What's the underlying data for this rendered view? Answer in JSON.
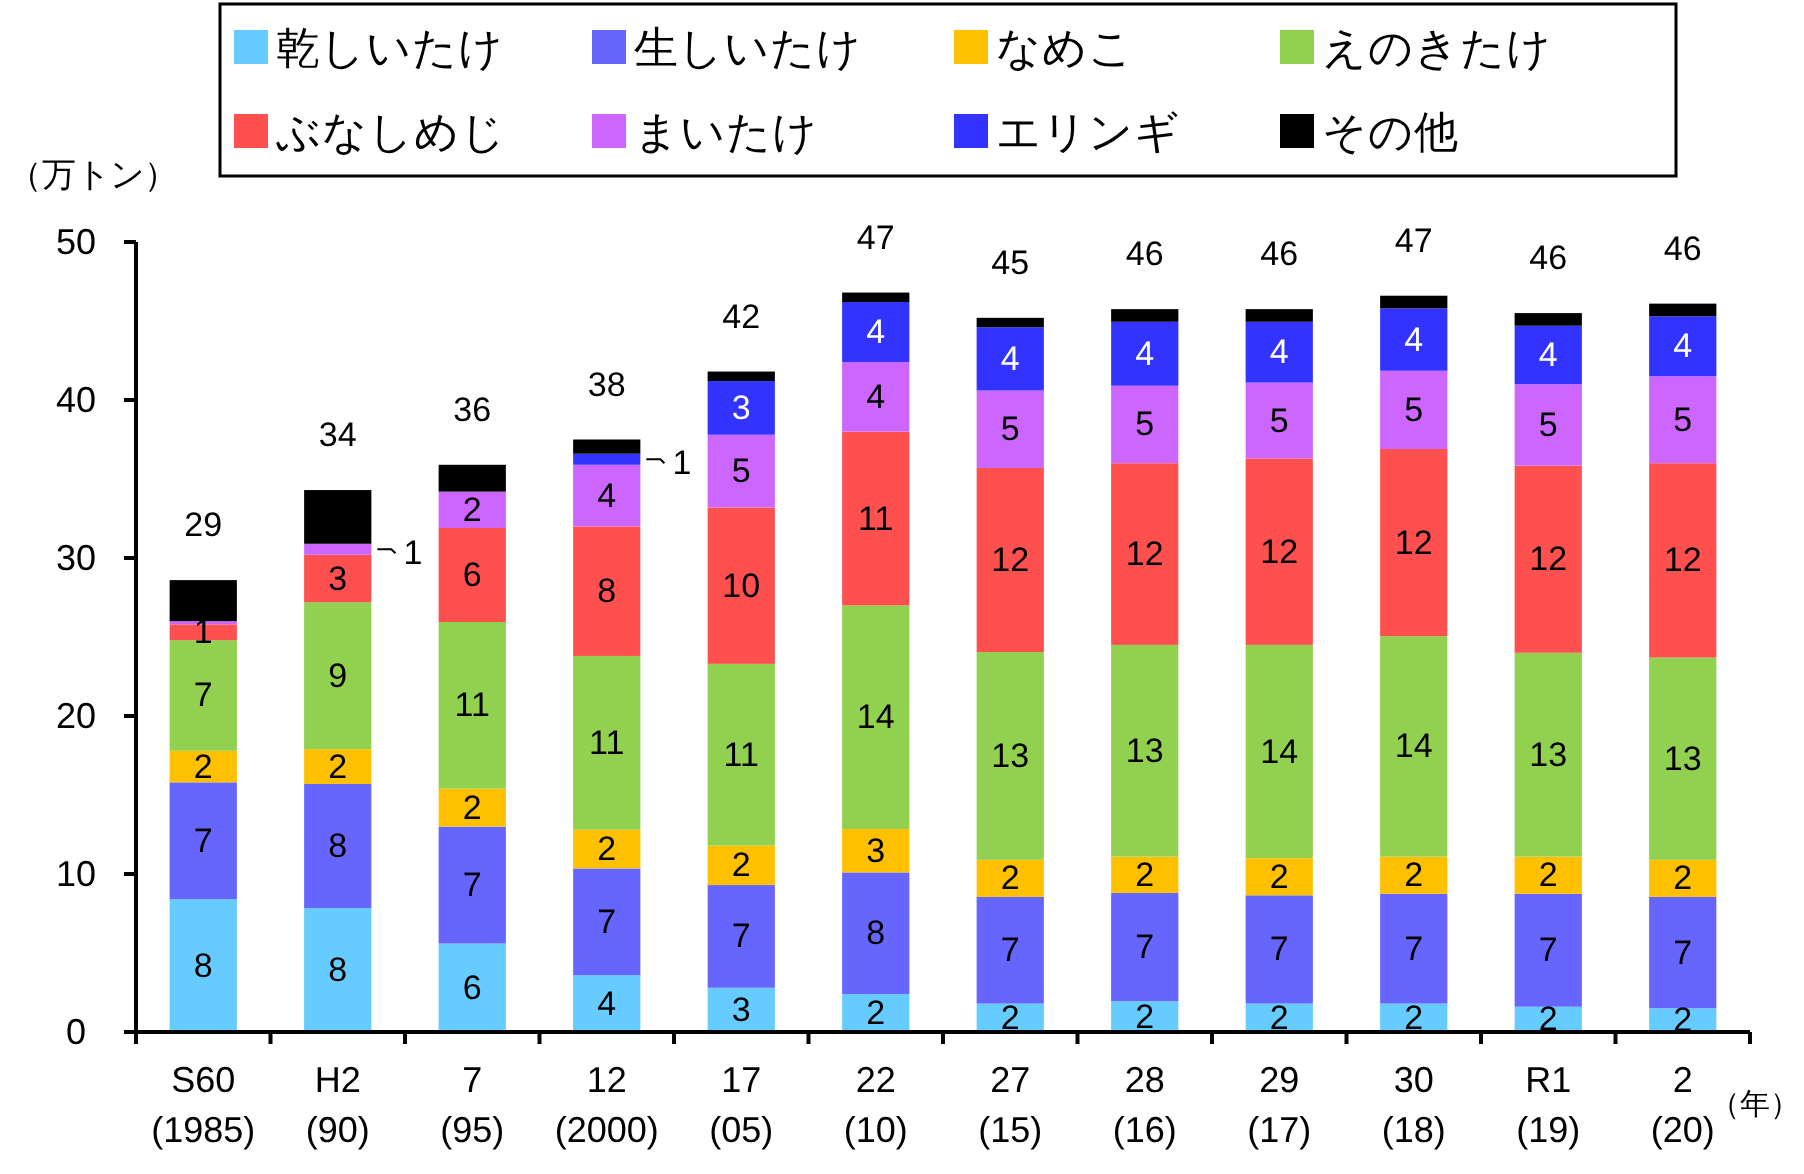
{
  "chart_data": {
    "type": "bar",
    "stacked": true,
    "ylabel": "（万トン）",
    "xlabel": "（年）",
    "categories": [
      "S60\n(1985)",
      "H2\n(90)",
      "7\n(95)",
      "12\n(2000)",
      "17\n(05)",
      "22\n(10)",
      "27\n(15)",
      "28\n(16)",
      "29\n(17)",
      "30\n(18)",
      "R1\n(19)",
      "2\n(20)"
    ],
    "ylim": [
      0,
      50
    ],
    "yticks": [
      0,
      10,
      20,
      30,
      40,
      50
    ],
    "legend": "top",
    "series": [
      {
        "name": "乾しいたけ",
        "color": "#66ccff",
        "values": [
          8.4,
          7.85,
          5.6,
          3.6,
          2.8,
          2.4,
          1.8,
          1.95,
          1.8,
          1.8,
          1.6,
          1.5
        ],
        "value_labels": [
          "8",
          "8",
          "6",
          "4",
          "3",
          "2",
          "2",
          "2",
          "2",
          "2",
          "2",
          "2"
        ]
      },
      {
        "name": "生しいたけ",
        "color": "#6666ff",
        "values": [
          7.4,
          7.85,
          7.4,
          6.75,
          6.5,
          7.7,
          6.75,
          6.85,
          6.85,
          6.95,
          7.15,
          7.05
        ],
        "value_labels": [
          "7",
          "8",
          "7",
          "7",
          "7",
          "8",
          "7",
          "7",
          "7",
          "7",
          "7",
          "7"
        ]
      },
      {
        "name": "なめこ",
        "color": "#ffc000",
        "values": [
          2.0,
          2.2,
          2.4,
          2.45,
          2.5,
          2.75,
          2.35,
          2.3,
          2.35,
          2.35,
          2.35,
          2.35
        ],
        "value_labels": [
          "2",
          "2",
          "2",
          "2",
          "2",
          "3",
          "2",
          "2",
          "2",
          "2",
          "2",
          "2"
        ]
      },
      {
        "name": "えのきたけ",
        "color": "#92d050",
        "values": [
          7.0,
          9.3,
          10.55,
          11.0,
          11.5,
          14.15,
          13.15,
          13.4,
          13.5,
          13.95,
          12.9,
          12.8
        ],
        "value_labels": [
          "7",
          "9",
          "11",
          "11",
          "11",
          "14",
          "13",
          "13",
          "14",
          "14",
          "13",
          "13"
        ]
      },
      {
        "name": "ぶなしめじ",
        "color": "#ff5050",
        "values": [
          1.0,
          3.0,
          5.95,
          8.2,
          9.9,
          11.0,
          11.65,
          11.5,
          11.8,
          11.85,
          11.85,
          12.3
        ],
        "value_labels": [
          "1",
          "3",
          "6",
          "8",
          "10",
          "11",
          "12",
          "12",
          "12",
          "12",
          "12",
          "12"
        ]
      },
      {
        "name": "まいたけ",
        "color": "#cc66ff",
        "values": [
          0.2,
          0.7,
          2.3,
          3.9,
          4.6,
          4.4,
          4.9,
          4.9,
          4.8,
          4.95,
          5.15,
          5.5
        ],
        "value_labels": [
          null,
          "1",
          "2",
          "4",
          "5",
          "4",
          "5",
          "5",
          "5",
          "5",
          "5",
          "5"
        ]
      },
      {
        "name": "エリンギ",
        "color": "#3333ff",
        "values": [
          null,
          null,
          null,
          0.7,
          3.4,
          3.8,
          4.0,
          4.05,
          3.85,
          3.95,
          3.7,
          3.8
        ],
        "value_labels": [
          null,
          null,
          null,
          "1",
          "3",
          "4",
          "4",
          "4",
          "4",
          "4",
          "4",
          "4"
        ]
      },
      {
        "name": "その他",
        "color": "#000000",
        "values": [
          2.6,
          3.4,
          1.7,
          0.9,
          0.6,
          0.6,
          0.6,
          0.8,
          0.8,
          0.8,
          0.8,
          0.8
        ]
      }
    ],
    "totals": [
      "29",
      "34",
      "36",
      "38",
      "42",
      "47",
      "45",
      "46",
      "46",
      "47",
      "46",
      "46"
    ]
  }
}
